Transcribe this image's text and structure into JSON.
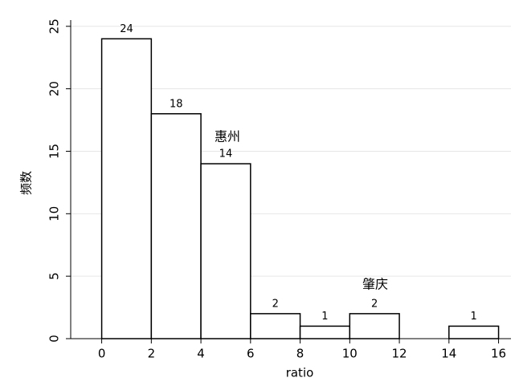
{
  "chart_data": {
    "type": "histogram",
    "bins": [
      0,
      2,
      4,
      6,
      8,
      10,
      12,
      14,
      16
    ],
    "values": [
      24,
      18,
      14,
      2,
      1,
      2,
      0,
      1
    ],
    "xlabel": "ratio",
    "ylabel": "频数",
    "annotations": [
      "惠州",
      "肇庆"
    ],
    "xlim": [
      -1.25,
      16.5
    ],
    "xticks": [
      0,
      2,
      4,
      6,
      8,
      10,
      12,
      14,
      16
    ],
    "ylim": [
      0,
      25.5
    ],
    "yticks": [
      0,
      5,
      10,
      15,
      20,
      25
    ],
    "grid": true,
    "color": "#ffffff"
  }
}
